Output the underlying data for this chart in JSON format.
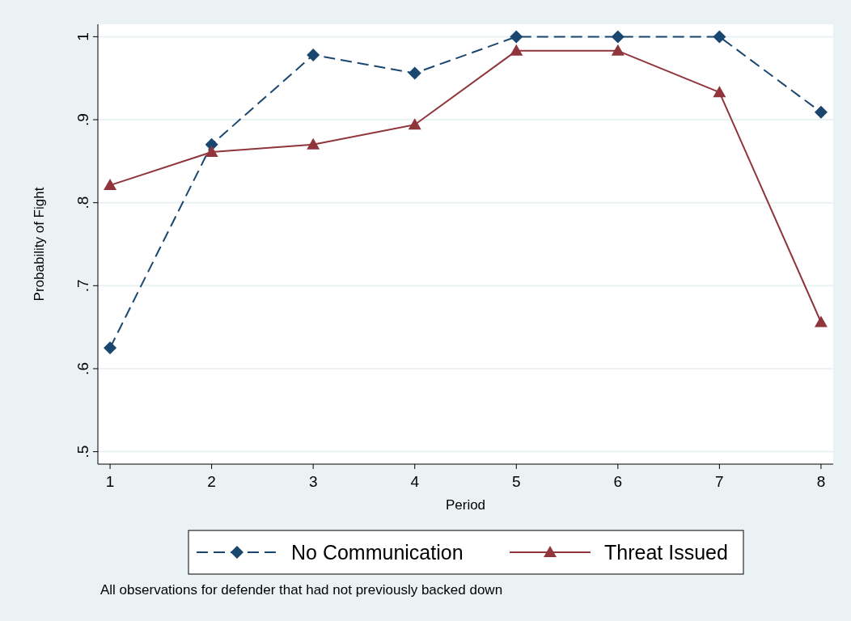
{
  "chart_data": {
    "type": "line",
    "xlabel": "Period",
    "ylabel": "Probability of Fight",
    "x": [
      1,
      2,
      3,
      4,
      5,
      6,
      7,
      8
    ],
    "series": [
      {
        "name": "No Communication",
        "color": "#1a476f",
        "marker": "diamond",
        "line_style": "dashed",
        "values": [
          0.625,
          0.87,
          0.978,
          0.956,
          1,
          1,
          1,
          0.909
        ]
      },
      {
        "name": "Threat Issued",
        "color": "#90353b",
        "marker": "triangle",
        "line_style": "solid",
        "values": [
          0.821,
          0.861,
          0.87,
          0.894,
          0.983,
          0.983,
          0.933,
          0.656
        ]
      }
    ],
    "xlim": [
      0.88,
      8.12
    ],
    "xticks": [
      1,
      2,
      3,
      4,
      5,
      6,
      7,
      8
    ],
    "ylim": [
      0.485,
      1.015
    ],
    "yticks": [
      {
        "value": 0.5,
        "label": ".5"
      },
      {
        "value": 0.6,
        "label": ".6"
      },
      {
        "value": 0.7,
        "label": ".7"
      },
      {
        "value": 0.8,
        "label": ".8"
      },
      {
        "value": 0.9,
        "label": ".9"
      },
      1
    ],
    "grid": "y",
    "legend": "bottom",
    "annotations": [
      "All observations for defender that had not previously backed down"
    ]
  }
}
